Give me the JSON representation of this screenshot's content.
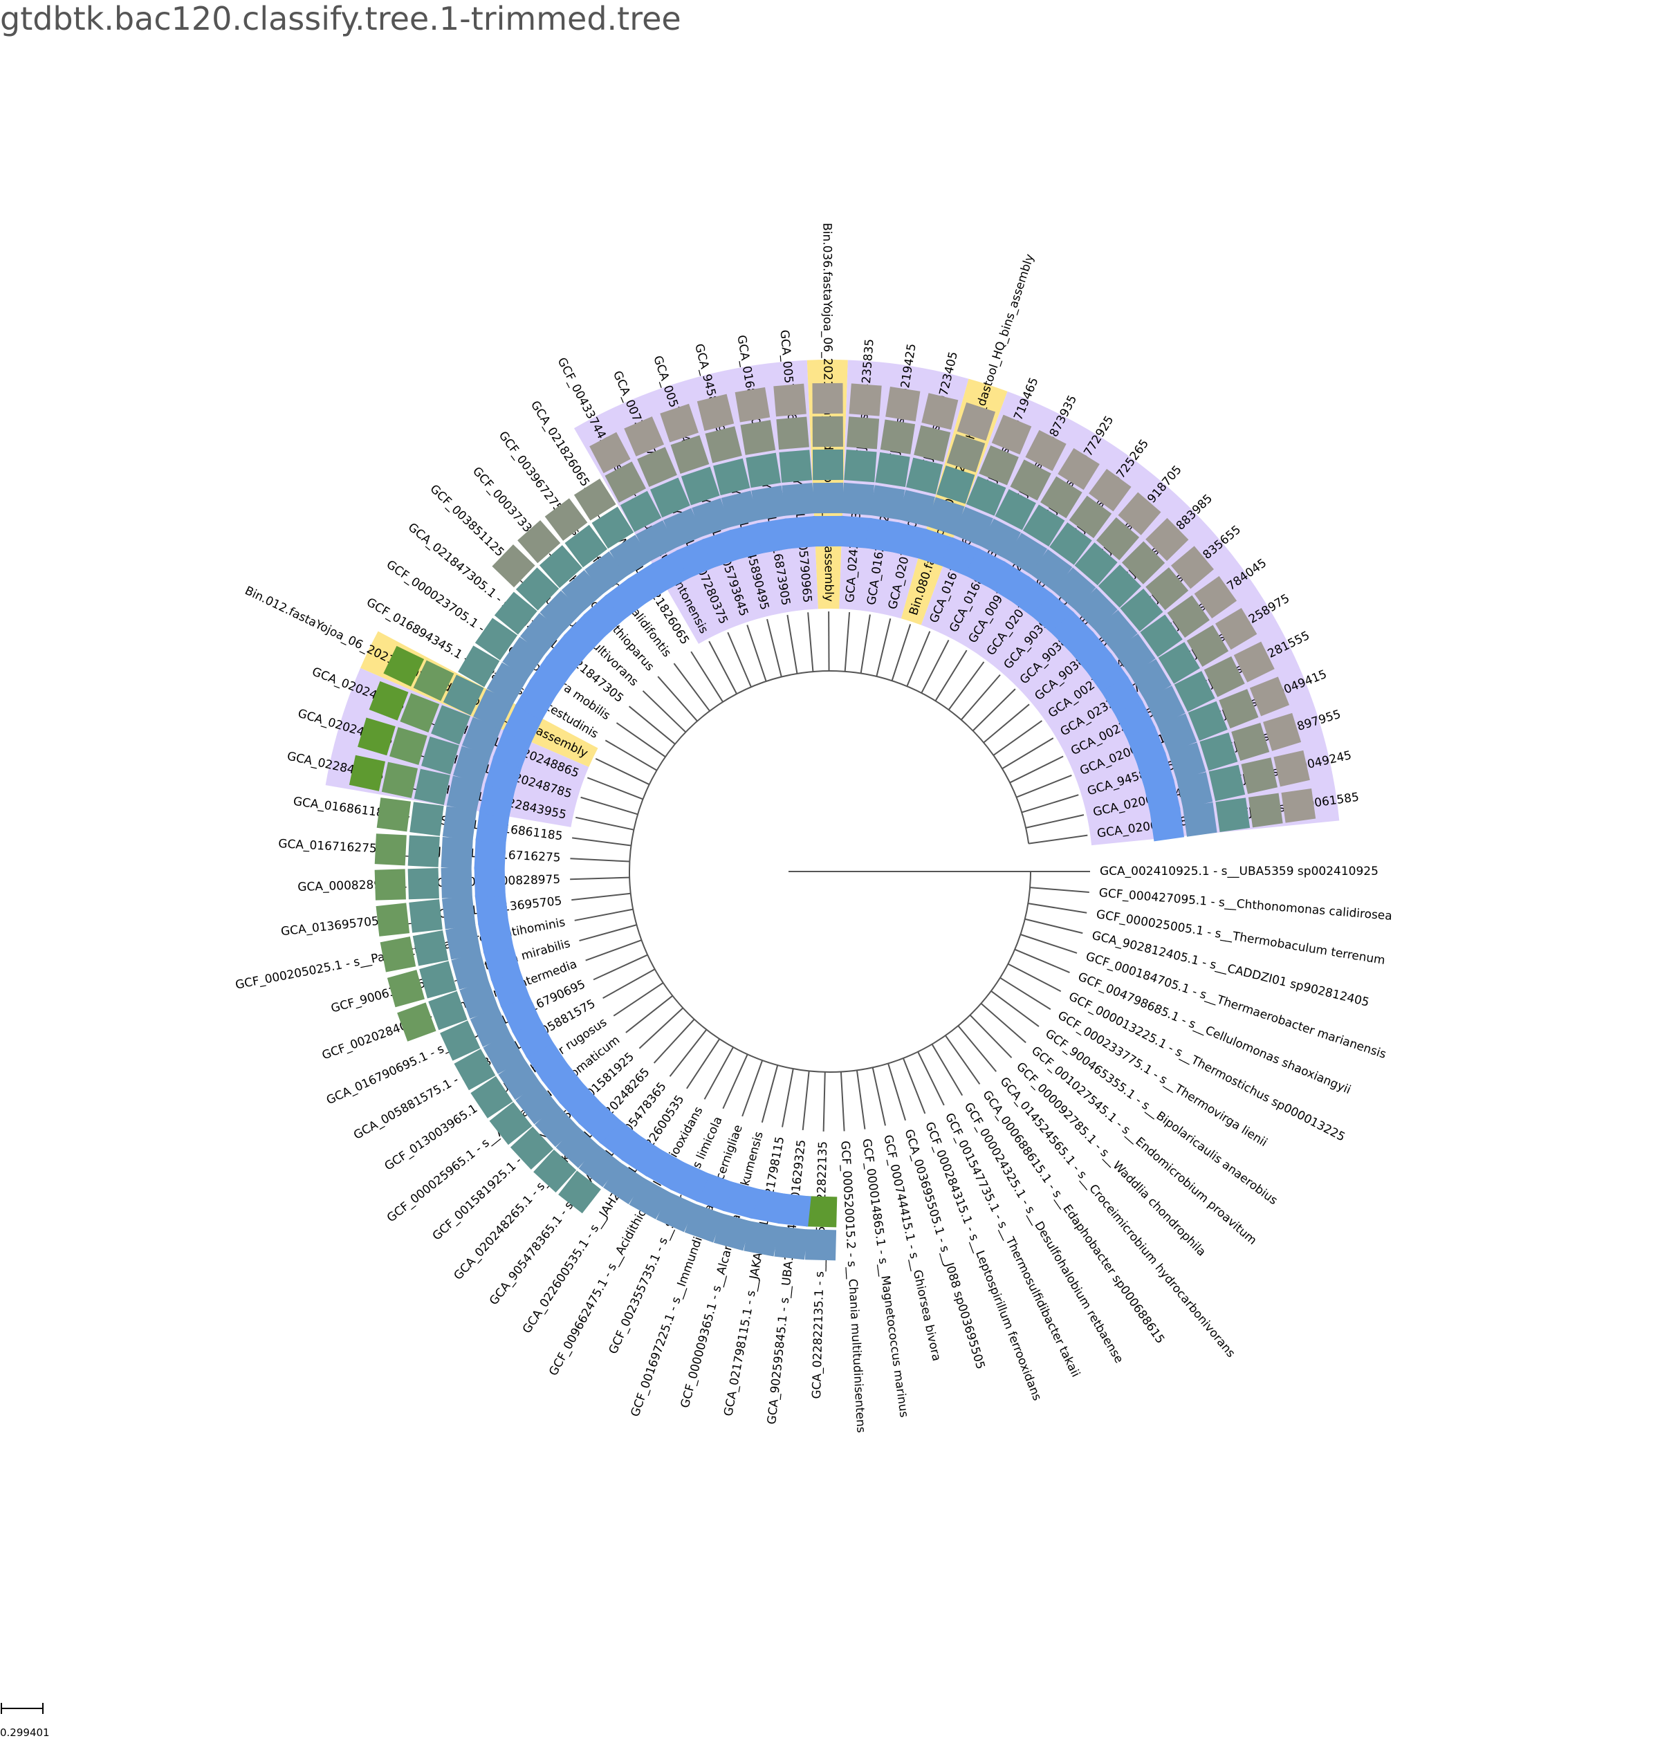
{
  "title": "gtdbtk.bac120.classify.tree.1-trimmed.tree",
  "scale_label": "0.299401",
  "colors": {
    "purple_band": "#ddd0fa",
    "yellow_band": "#fde58a",
    "branch": "#555555",
    "tile_palette": [
      "#6699ee",
      "#6a96c2",
      "#5f9490",
      "#8a9382",
      "#a09a92",
      "#6c9a5f",
      "#5e9a30"
    ]
  },
  "leaves": [
    {
      "label": "GCA_002410925.1 - s__UBA5359 sp002410925",
      "band": null,
      "tiles": []
    },
    {
      "label": "GCF_000427095.1 - s__Chthonomonas calidirosea",
      "band": null,
      "tiles": []
    },
    {
      "label": "GCF_000025005.1 - s__Thermobaculum terrenum",
      "band": null,
      "tiles": []
    },
    {
      "label": "GCA_902812405.1 - s__CADDZI01 sp902812405",
      "band": null,
      "tiles": []
    },
    {
      "label": "GCF_000184705.1 - s__Thermaerobacter marianensis",
      "band": null,
      "tiles": []
    },
    {
      "label": "GCF_004798685.1 - s__Cellulomonas shaoxiangyii",
      "band": null,
      "tiles": []
    },
    {
      "label": "GCF_000013225.1 - s__Thermostichus sp000013225",
      "band": null,
      "tiles": []
    },
    {
      "label": "GCF_000233775.1 - s__Thermovirga lienii",
      "band": null,
      "tiles": []
    },
    {
      "label": "GCF_900465355.1 - s__Bipolaricaulis anaerobius",
      "band": null,
      "tiles": []
    },
    {
      "label": "GCF_001027545.1 - s__Endomicrobium proavitum",
      "band": null,
      "tiles": []
    },
    {
      "label": "GCF_000092785.1 - s__Waddlia chondrophila",
      "band": null,
      "tiles": []
    },
    {
      "label": "GCA_014524565.1 - s__Croceimicrobium hydrocarbonivorans",
      "band": null,
      "tiles": []
    },
    {
      "label": "GCA_000688615.1 - s__Edaphobacter sp000688615",
      "band": null,
      "tiles": []
    },
    {
      "label": "GCF_000024325.1 - s__Desulfohalobium retbaense",
      "band": null,
      "tiles": []
    },
    {
      "label": "GCF_001547735.1 - s__Thermosulfidibacter takaii",
      "band": null,
      "tiles": []
    },
    {
      "label": "GCF_000284315.1 - s__Leptospirillum ferrooxidans",
      "band": null,
      "tiles": []
    },
    {
      "label": "GCA_003695505.1 - s__J088 sp003695505",
      "band": null,
      "tiles": []
    },
    {
      "label": "GCF_000744415.1 - s__Ghiorsea bivora",
      "band": null,
      "tiles": []
    },
    {
      "label": "GCF_000014865.1 - s__Magnetococcus marinus",
      "band": null,
      "tiles": []
    },
    {
      "label": "GCF_000520015.2 - s__Chania multitudinisentens",
      "band": null,
      "tiles": []
    },
    {
      "label": "GCA_022822135.1 - s__Bin55 sp022822135",
      "band": null,
      "tiles": [
        6,
        1
      ]
    },
    {
      "label": "GCA_902595845.1 - s__UBA11654 sp001629325",
      "band": null,
      "tiles": [
        0,
        1
      ]
    },
    {
      "label": "GCA_021798115.1 - s__JAKAQQ01 sp021798115",
      "band": null,
      "tiles": [
        0,
        1
      ]
    },
    {
      "label": "GCF_000009365.1 - s__Alcanivorax borkumensis",
      "band": null,
      "tiles": [
        0,
        1
      ]
    },
    {
      "label": "GCF_001697225.1 - s__Immundisolibacter cernigliae",
      "band": null,
      "tiles": [
        0,
        1
      ]
    },
    {
      "label": "GCF_002355735.1 - s__Sulfuricaulis limicola",
      "band": null,
      "tiles": [
        0,
        1
      ]
    },
    {
      "label": "GCF_009662475.1 - s__Acidithiobacillus thiooxidans",
      "band": null,
      "tiles": [
        0,
        1
      ]
    },
    {
      "label": "GCA_022600535.1 - s__JAHZKE01 sp022600535",
      "band": null,
      "tiles": [
        0,
        1
      ]
    },
    {
      "label": "GCA_905478365.1 - s__UBA3031 sp905478365",
      "band": null,
      "tiles": [
        0,
        1,
        2
      ]
    },
    {
      "label": "GCA_020248265.1 - s__CAIKXV01 sp020248265",
      "band": null,
      "tiles": [
        0,
        1,
        2
      ]
    },
    {
      "label": "GCF_001581925.1 - s__PN-J185 sp001581925",
      "band": null,
      "tiles": [
        0,
        1,
        2
      ]
    },
    {
      "label": "GCF_000025965.1 - s__Aromatoleum aromaticum",
      "band": null,
      "tiles": [
        0,
        1,
        2
      ]
    },
    {
      "label": "GCF_013003965.1 - s__Usitatibacter rugosus",
      "band": null,
      "tiles": [
        0,
        1,
        2
      ]
    },
    {
      "label": "GCA_005881575.1 - s__VBDM01 sp005881575",
      "band": null,
      "tiles": [
        0,
        1,
        2
      ]
    },
    {
      "label": "GCA_016790695.1 - s__JAEUOS01 sp016790695",
      "band": null,
      "tiles": [
        0,
        1,
        2
      ]
    },
    {
      "label": "GCF_002028405.1 - s__Thiomonas intermedia",
      "band": null,
      "tiles": [
        0,
        1,
        2,
        5
      ]
    },
    {
      "label": "GCF_900637555.1 - s__Lautropia mirabilis",
      "band": null,
      "tiles": [
        0,
        1,
        2,
        5
      ]
    },
    {
      "label": "GCF_000205025.1 - s__Parasutterella excrementihominis",
      "band": null,
      "tiles": [
        0,
        1,
        2,
        5
      ]
    },
    {
      "label": "GCA_013695705.1 - s__JACCZX01 sp013695705",
      "band": null,
      "tiles": [
        0,
        1,
        2,
        5
      ]
    },
    {
      "label": "GCA_000828975.1 - s__GJ-E10 sp000828975",
      "band": null,
      "tiles": [
        0,
        1,
        2,
        5
      ]
    },
    {
      "label": "GCA_016716275.1 - s__JADJWR01 sp016716275",
      "band": null,
      "tiles": [
        0,
        1,
        2,
        5
      ]
    },
    {
      "label": "GCA_016861185.1 - s__DSNY01 sp016861185",
      "band": null,
      "tiles": [
        0,
        1,
        2,
        5
      ]
    },
    {
      "label": "GCA_022843955.1 - s__JALHMQ01 sp022843955",
      "band": "purple",
      "tiles": [
        0,
        1,
        2,
        5,
        6
      ]
    },
    {
      "label": "GCA_020248785.1 - s__JALHMQ01 sp020248785",
      "band": "purple",
      "tiles": [
        0,
        1,
        2,
        5,
        6
      ]
    },
    {
      "label": "GCA_020248865.1 - s__JALHMQ01 sp020248865",
      "band": "purple",
      "tiles": [
        0,
        1,
        2,
        5,
        6
      ]
    },
    {
      "label": "Bin.012.fastaYojoa_06_2021_R_hypo_dastool_HQ_bins_assembly",
      "band": "yellow",
      "tiles": [
        0,
        1,
        2,
        5,
        6
      ]
    },
    {
      "label": "GCF_016894345.1 - s__Paralysiella testudinis",
      "band": null,
      "tiles": [
        0,
        1,
        2
      ]
    },
    {
      "label": "GCF_000023705.1 - s__Methylotenera mobilis",
      "band": null,
      "tiles": [
        0,
        1,
        2
      ]
    },
    {
      "label": "GCA_021847305.1 - s__JAJZQI01 sp021847305",
      "band": null,
      "tiles": [
        0,
        1,
        2
      ]
    },
    {
      "label": "GCF_003851125.1 - s__Sulfuriferula multivorans",
      "band": null,
      "tiles": [
        0,
        1,
        2,
        3
      ]
    },
    {
      "label": "GCF_000373385.1 - s__Thiobacillus thioparus",
      "band": null,
      "tiles": [
        0,
        1,
        2,
        3
      ]
    },
    {
      "label": "GCF_003967275.1 - s__Sulfuritortus calidifontis",
      "band": null,
      "tiles": [
        0,
        1,
        2,
        3
      ]
    },
    {
      "label": "GCA_021826065.1 - s__JANWZL01 sp021826065",
      "band": null,
      "tiles": [
        0,
        1,
        2,
        3
      ]
    },
    {
      "label": "GCF_004337445.1 - s__Parasulfuritortus cantonensis",
      "band": "purple",
      "tiles": [
        0,
        1,
        2,
        3,
        4
      ]
    },
    {
      "label": "GCA_007280375.1 - s__QYQG01 sp007280375",
      "band": "purple",
      "tiles": [
        0,
        1,
        2,
        3,
        4
      ]
    },
    {
      "label": "GCA_005793645.1 - s__QYQG01 sp005793645",
      "band": "purple",
      "tiles": [
        0,
        1,
        2,
        3,
        4
      ]
    },
    {
      "label": "GCA_945890495.1 - s__QYQG01 sp945890495",
      "band": "purple",
      "tiles": [
        0,
        1,
        2,
        3,
        4
      ]
    },
    {
      "label": "GCA_016873905.1 - s__QYQG01 sp016873905",
      "band": "purple",
      "tiles": [
        0,
        1,
        2,
        3,
        4
      ]
    },
    {
      "label": "GCA_005790965.1 - s__QYQG01 sp005790965",
      "band": "purple",
      "tiles": [
        0,
        1,
        2,
        3,
        4
      ]
    },
    {
      "label": "Bin.036.fastaYojoa_06_2021_R_hypo_dastool_HQ_bins_assembly",
      "band": "yellow",
      "tiles": [
        0,
        1,
        2,
        3,
        4
      ]
    },
    {
      "label": "GCA_024235835.1 - s__PFJX01 sp024235835",
      "band": "purple",
      "tiles": [
        0,
        1,
        2,
        3,
        4
      ]
    },
    {
      "label": "GCA_016219425.1 - s__PFJX01 sp016219425",
      "band": "purple",
      "tiles": [
        0,
        1,
        2,
        3,
        4
      ]
    },
    {
      "label": "GCA_020723405.1 - s__PFJX01 sp020723405",
      "band": "purple",
      "tiles": [
        0,
        1,
        2,
        3,
        4
      ]
    },
    {
      "label": "Bin.080.fastaYojoa_06_2021_R_hypo_dastool_HQ_bins_assembly",
      "band": "yellow",
      "tiles": [
        0,
        1,
        2,
        3,
        4
      ]
    },
    {
      "label": "GCA_016719465.1 - s__PFJX01 sp016719465",
      "band": "purple",
      "tiles": [
        0,
        1,
        2,
        3,
        4
      ]
    },
    {
      "label": "GCA_016873935.1 - s__PFJX01 sp016873935",
      "band": "purple",
      "tiles": [
        0,
        1,
        2,
        3,
        4
      ]
    },
    {
      "label": "GCA_009772925.1 - s__PFJX01 sp009772925",
      "band": "purple",
      "tiles": [
        0,
        1,
        2,
        3,
        4
      ]
    },
    {
      "label": "GCA_020725265.1 - s__PFJX01 sp020725265",
      "band": "purple",
      "tiles": [
        0,
        1,
        2,
        3,
        4
      ]
    },
    {
      "label": "GCA_903918705.1 - s__PFJX01 sp903918705",
      "band": "purple",
      "tiles": [
        0,
        1,
        2,
        3,
        4
      ]
    },
    {
      "label": "GCA_903883985.1 - s__PFJX01 sp903883985",
      "band": "purple",
      "tiles": [
        0,
        1,
        2,
        3,
        4
      ]
    },
    {
      "label": "GCA_903835655.1 - s__PFJX01 sp903835655",
      "band": "purple",
      "tiles": [
        0,
        1,
        2,
        3,
        4
      ]
    },
    {
      "label": "GCA_002784045.1 - s__PFJX01 sp002784045",
      "band": "purple",
      "tiles": [
        0,
        1,
        2,
        3,
        4
      ]
    },
    {
      "label": "GCA_023258975.1 - s__PFJX01 sp023258975",
      "band": "purple",
      "tiles": [
        0,
        1,
        2,
        3,
        4
      ]
    },
    {
      "label": "GCA_002281555.1 - s__PFJX01 sp002281555",
      "band": "purple",
      "tiles": [
        0,
        1,
        2,
        3,
        4
      ]
    },
    {
      "label": "GCA_020049415.1 - s__PFJX01 sp020049415",
      "band": "purple",
      "tiles": [
        0,
        1,
        2,
        3,
        4
      ]
    },
    {
      "label": "GCA_945897955.1 - s__PFJX01 sp945897955",
      "band": "purple",
      "tiles": [
        0,
        1,
        2,
        3,
        4
      ]
    },
    {
      "label": "GCA_020049245.1 - s__PFJX01 sp020049245",
      "band": "purple",
      "tiles": [
        0,
        1,
        2,
        3,
        4
      ]
    },
    {
      "label": "GCA_020061585.1 - s__PFJX01 sp020061585",
      "band": "purple",
      "tiles": [
        0,
        1,
        2,
        3,
        4
      ]
    }
  ]
}
